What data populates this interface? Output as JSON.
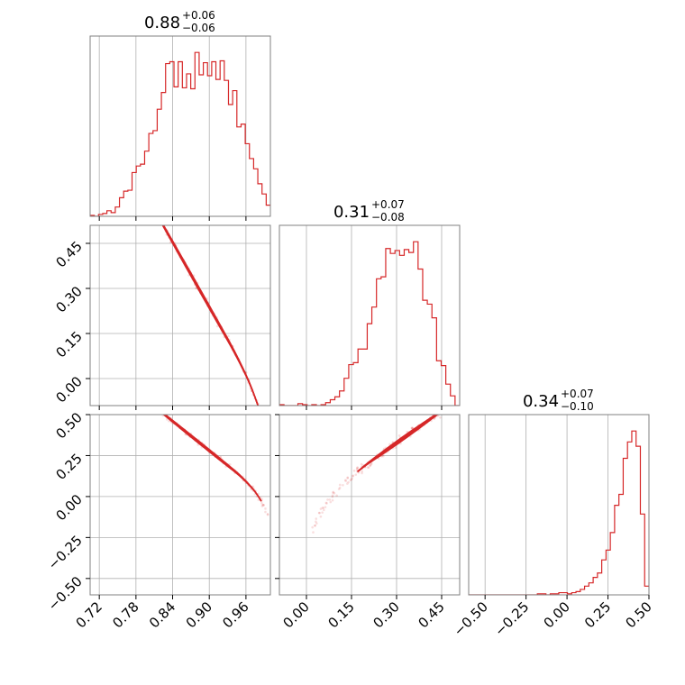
{
  "chart_data": {
    "type": "corner",
    "color": "#d62728",
    "grid": true,
    "parameters": [
      {
        "median": "0.88",
        "plus": "+0.06",
        "minus": "−0.06",
        "range": [
          0.705,
          1.0
        ],
        "ticks": [
          0.72,
          0.78,
          0.84,
          0.9,
          0.96
        ],
        "tick_labels": [
          "0.72",
          "0.78",
          "0.84",
          "0.90",
          "0.96"
        ],
        "hist": [
          1,
          0,
          2,
          3,
          6,
          4,
          10,
          20,
          27,
          28,
          47,
          54,
          56,
          70,
          89,
          92,
          115,
          133,
          164,
          166,
          139,
          166,
          138,
          153,
          137,
          176,
          152,
          165,
          151,
          166,
          147,
          167,
          146,
          120,
          135,
          96,
          99,
          78,
          62,
          51,
          35,
          24,
          12
        ]
      },
      {
        "median": "0.31",
        "plus": "+0.07",
        "minus": "−0.08",
        "range": [
          -0.09,
          0.51
        ],
        "ticks": [
          0.0,
          0.15,
          0.3,
          0.45
        ],
        "tick_labels": [
          "0.00",
          "0.15",
          "0.30",
          "0.45"
        ],
        "hist": [
          1,
          0,
          0,
          0,
          2,
          1,
          0,
          1,
          0,
          1,
          3,
          6,
          9,
          15,
          28,
          42,
          44,
          58,
          58,
          84,
          101,
          130,
          132,
          161,
          156,
          159,
          154,
          160,
          157,
          168,
          140,
          108,
          104,
          90,
          46,
          41,
          22,
          10,
          0
        ]
      },
      {
        "median": "0.34",
        "plus": "+0.07",
        "minus": "−0.10",
        "range": [
          -0.6,
          0.5
        ],
        "ticks": [
          -0.5,
          -0.25,
          0.0,
          0.25,
          0.5
        ],
        "tick_labels": [
          "−0.50",
          "−0.25",
          "0.00",
          "0.25",
          "0.50"
        ],
        "hist": [
          0,
          0,
          0,
          0,
          0,
          0,
          0,
          0,
          0,
          0,
          0,
          0,
          0,
          0,
          0,
          0,
          1,
          1,
          0,
          1,
          1,
          2,
          2,
          1,
          2,
          3,
          5,
          8,
          11,
          16,
          20,
          32,
          41,
          57,
          82,
          92,
          125,
          140,
          150,
          136,
          74,
          8
        ]
      }
    ]
  }
}
